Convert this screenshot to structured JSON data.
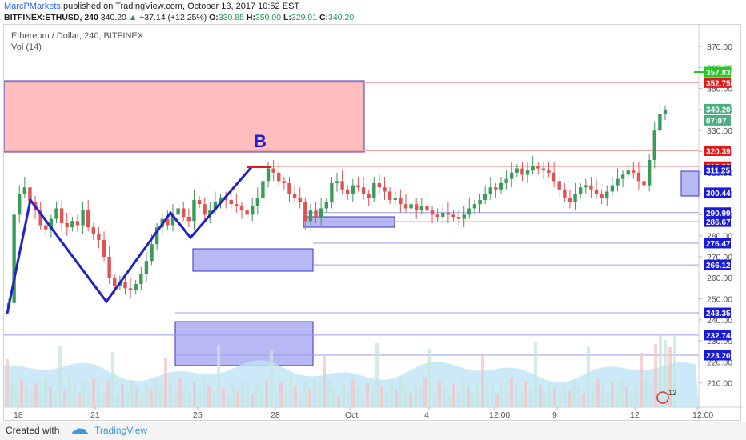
{
  "header": {
    "author": "MarcPMarkets",
    "published": "published on TradingView.com, October 13, 2017 10:52 EST",
    "symbol": "BITFINEX:ETHUSD, 240",
    "last": "340.20",
    "change": "+37.14 (+12.25%)",
    "open_label": "O:",
    "open": "330.85",
    "high_label": "H:",
    "high": "350.00",
    "low_label": "L:",
    "low": "329.91",
    "close_label": "C:",
    "close": "340.20"
  },
  "legend": {
    "title": "Ethereum / Dollar, 240, BITFINEX",
    "indicator": "Vol (14)"
  },
  "footer": {
    "created_with": "Created with",
    "brand": "TradingView"
  },
  "colors": {
    "up": "#26a69a",
    "down": "#ef5350",
    "zone_red": "#ffbdbd",
    "zone_blue": "#b8b8f5",
    "line_red": "#f0a0a0",
    "line_blue": "#9a9ae8",
    "trend": "#2222cc",
    "badge_blue": "#1a1adb",
    "badge_red": "#e01a1a",
    "badge_green": "#22cc22",
    "badge_price": "#4caf82"
  },
  "chart_data": {
    "type": "candlestick",
    "title": "Ethereum / Dollar, 240, BITFINEX",
    "ylim": [
      200,
      378
    ],
    "y_ticks": [
      210.0,
      220.0,
      230.0,
      240.0,
      250.0,
      260.0,
      270.0,
      280.0,
      290.0,
      300.0,
      310.0,
      320.0,
      330.0,
      340.0,
      350.0,
      360.0,
      370.0
    ],
    "x_ticks": [
      "18",
      "21",
      "25",
      "28",
      "Oct",
      "4",
      "12:00",
      "9",
      "12",
      "12:00"
    ],
    "price_levels": [
      {
        "label": "352.75",
        "value": 352.75,
        "style": "red"
      },
      {
        "label": "320.39",
        "value": 320.39,
        "style": "red"
      },
      {
        "label": "312.88",
        "value": 312.88,
        "style": "red"
      },
      {
        "label": "311.25",
        "value": 311.25,
        "style": "blue"
      },
      {
        "label": "300.44",
        "value": 300.44,
        "style": "blue"
      },
      {
        "label": "290.99",
        "value": 290.99,
        "style": "blue"
      },
      {
        "label": "286.67",
        "value": 286.67,
        "style": "blue"
      },
      {
        "label": "276.47",
        "value": 276.47,
        "style": "blue"
      },
      {
        "label": "266.12",
        "value": 266.12,
        "style": "blue"
      },
      {
        "label": "243.35",
        "value": 243.35,
        "style": "blue"
      },
      {
        "label": "232.74",
        "value": 232.74,
        "style": "blue"
      },
      {
        "label": "223.20",
        "value": 223.2,
        "style": "blue"
      }
    ],
    "current_price": {
      "label": "340.20",
      "value": 340.2
    },
    "countdown": "07:07",
    "alert_price": {
      "label": "357.83",
      "value": 357.83
    },
    "annotation": "B",
    "volume_badge": "12"
  }
}
